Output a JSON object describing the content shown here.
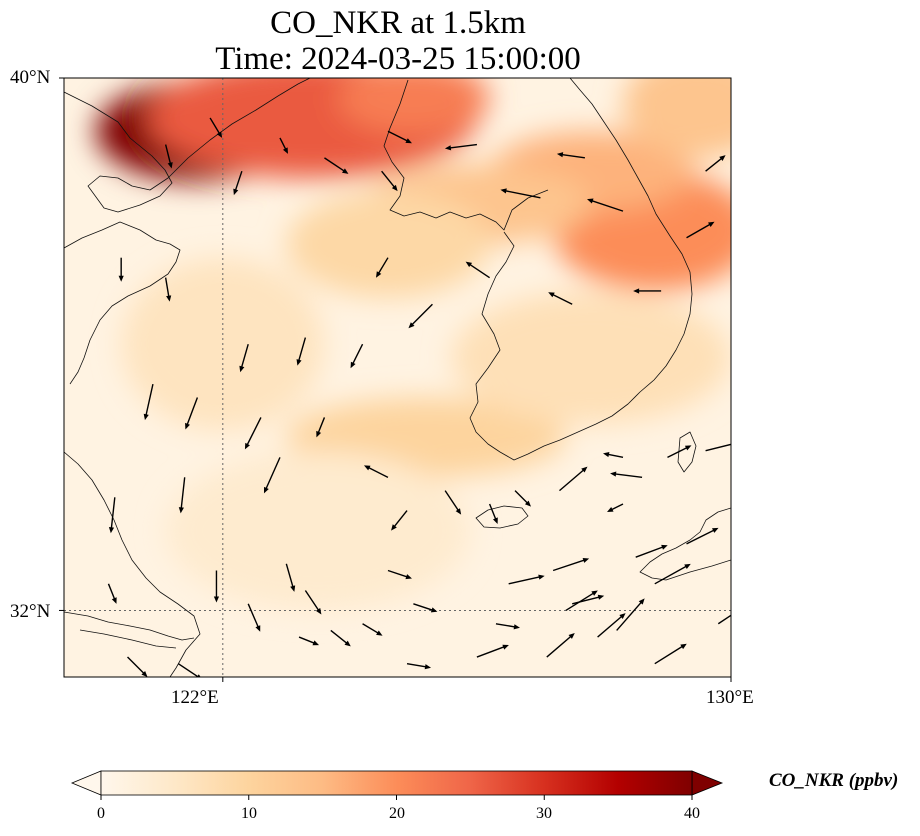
{
  "title": {
    "line1": "CO_NKR at 1.5km",
    "line2": "Time: 2024-03-25 15:00:00"
  },
  "map": {
    "extent": {
      "lon": [
        119.5,
        130.0
      ],
      "lat": [
        31.0,
        40.0
      ]
    },
    "latitude_ticks": [
      {
        "value": 40,
        "label": "40°N"
      },
      {
        "value": 32,
        "label": "32°N"
      }
    ],
    "longitude_ticks": [
      {
        "value": 122,
        "label": "122°E"
      },
      {
        "value": 130,
        "label": "130°E"
      }
    ],
    "gridlines": {
      "lon": [
        122
      ],
      "lat": [
        32
      ],
      "style": "dotted"
    },
    "field_blobs": [
      {
        "lon": 121.6,
        "lat": 39.2,
        "rlon": 1.6,
        "rlat": 0.75,
        "value": 40
      },
      {
        "lon": 122.7,
        "lat": 39.6,
        "rlon": 1.4,
        "rlat": 0.5,
        "value": 40
      },
      {
        "lon": 123.6,
        "lat": 39.75,
        "rlon": 1.2,
        "rlat": 0.4,
        "value": 38
      },
      {
        "lon": 123.4,
        "lat": 39.4,
        "rlon": 2.6,
        "rlat": 0.9,
        "value": 26
      },
      {
        "lon": 125.0,
        "lat": 39.7,
        "rlon": 1.2,
        "rlat": 0.55,
        "value": 22
      },
      {
        "lon": 128.8,
        "lat": 37.7,
        "rlon": 1.6,
        "rlat": 0.9,
        "value": 20
      },
      {
        "lon": 127.8,
        "lat": 38.6,
        "rlon": 1.6,
        "rlat": 0.6,
        "value": 16
      },
      {
        "lon": 126.0,
        "lat": 38.1,
        "rlon": 1.8,
        "rlat": 0.6,
        "value": 13
      },
      {
        "lon": 129.5,
        "lat": 39.6,
        "rlon": 1.2,
        "rlat": 0.8,
        "value": 13
      },
      {
        "lon": 124.6,
        "lat": 37.5,
        "rlon": 1.6,
        "rlat": 0.8,
        "value": 9
      },
      {
        "lon": 125.2,
        "lat": 34.6,
        "rlon": 2.2,
        "rlat": 0.6,
        "value": 10
      },
      {
        "lon": 127.8,
        "lat": 35.8,
        "rlon": 2.2,
        "rlat": 1.0,
        "value": 7
      },
      {
        "lon": 122.0,
        "lat": 36.0,
        "rlon": 1.6,
        "rlat": 1.3,
        "value": 6
      },
      {
        "lon": 123.5,
        "lat": 33.2,
        "rlon": 2.4,
        "rlat": 1.2,
        "value": 4
      }
    ],
    "wind_vectors": [
      {
        "lon": 121.1,
        "lat": 39.0,
        "u": 0.15,
        "v": -0.6
      },
      {
        "lon": 121.8,
        "lat": 39.4,
        "u": 0.3,
        "v": -0.5
      },
      {
        "lon": 122.3,
        "lat": 38.6,
        "u": -0.2,
        "v": -0.6
      },
      {
        "lon": 122.9,
        "lat": 39.1,
        "u": 0.2,
        "v": -0.4
      },
      {
        "lon": 123.6,
        "lat": 38.8,
        "u": 0.6,
        "v": -0.4
      },
      {
        "lon": 124.6,
        "lat": 39.2,
        "u": 0.6,
        "v": -0.3
      },
      {
        "lon": 124.5,
        "lat": 38.6,
        "u": 0.4,
        "v": -0.5
      },
      {
        "lon": 126.0,
        "lat": 39.0,
        "u": -0.8,
        "v": -0.1
      },
      {
        "lon": 127.7,
        "lat": 38.8,
        "u": -0.7,
        "v": 0.1
      },
      {
        "lon": 127.0,
        "lat": 38.2,
        "u": -1.0,
        "v": 0.2
      },
      {
        "lon": 128.3,
        "lat": 38.0,
        "u": -0.9,
        "v": 0.3
      },
      {
        "lon": 129.6,
        "lat": 38.6,
        "u": 0.5,
        "v": 0.4
      },
      {
        "lon": 129.3,
        "lat": 37.6,
        "u": 0.7,
        "v": 0.4
      },
      {
        "lon": 128.9,
        "lat": 36.8,
        "u": -0.7,
        "v": 0.0
      },
      {
        "lon": 127.5,
        "lat": 36.6,
        "u": -0.6,
        "v": 0.3
      },
      {
        "lon": 126.2,
        "lat": 37.0,
        "u": -0.6,
        "v": 0.4
      },
      {
        "lon": 120.4,
        "lat": 37.3,
        "u": 0.0,
        "v": -0.6
      },
      {
        "lon": 121.1,
        "lat": 37.0,
        "u": 0.1,
        "v": -0.6
      },
      {
        "lon": 122.4,
        "lat": 36.0,
        "u": -0.2,
        "v": -0.7
      },
      {
        "lon": 123.3,
        "lat": 36.1,
        "u": -0.2,
        "v": -0.7
      },
      {
        "lon": 124.2,
        "lat": 36.0,
        "u": -0.3,
        "v": -0.6
      },
      {
        "lon": 125.3,
        "lat": 36.6,
        "u": -0.6,
        "v": -0.6
      },
      {
        "lon": 124.6,
        "lat": 37.3,
        "u": -0.3,
        "v": -0.5
      },
      {
        "lon": 120.9,
        "lat": 35.4,
        "u": -0.2,
        "v": -0.9
      },
      {
        "lon": 121.6,
        "lat": 35.2,
        "u": -0.3,
        "v": -0.8
      },
      {
        "lon": 122.6,
        "lat": 34.9,
        "u": -0.4,
        "v": -0.8
      },
      {
        "lon": 123.6,
        "lat": 34.9,
        "u": -0.2,
        "v": -0.5
      },
      {
        "lon": 121.4,
        "lat": 34.0,
        "u": -0.1,
        "v": -0.9
      },
      {
        "lon": 122.9,
        "lat": 34.3,
        "u": -0.4,
        "v": -0.9
      },
      {
        "lon": 120.3,
        "lat": 33.7,
        "u": -0.1,
        "v": -0.9
      },
      {
        "lon": 124.6,
        "lat": 34.0,
        "u": -0.6,
        "v": 0.3
      },
      {
        "lon": 124.9,
        "lat": 33.5,
        "u": -0.4,
        "v": -0.5
      },
      {
        "lon": 125.5,
        "lat": 33.8,
        "u": 0.4,
        "v": -0.6
      },
      {
        "lon": 126.2,
        "lat": 33.6,
        "u": 0.2,
        "v": -0.5
      },
      {
        "lon": 126.6,
        "lat": 33.8,
        "u": 0.4,
        "v": -0.4
      },
      {
        "lon": 127.3,
        "lat": 33.8,
        "u": 0.7,
        "v": 0.6
      },
      {
        "lon": 128.3,
        "lat": 33.6,
        "u": -0.4,
        "v": -0.2
      },
      {
        "lon": 128.3,
        "lat": 34.3,
        "u": -0.5,
        "v": 0.1
      },
      {
        "lon": 128.6,
        "lat": 34.0,
        "u": -0.8,
        "v": 0.1
      },
      {
        "lon": 129.0,
        "lat": 34.3,
        "u": 0.6,
        "v": 0.3
      },
      {
        "lon": 129.6,
        "lat": 34.4,
        "u": 0.8,
        "v": 0.2
      },
      {
        "lon": 121.9,
        "lat": 32.6,
        "u": 0.0,
        "v": -0.8
      },
      {
        "lon": 123.0,
        "lat": 32.7,
        "u": 0.2,
        "v": -0.7
      },
      {
        "lon": 122.4,
        "lat": 32.1,
        "u": 0.3,
        "v": -0.7
      },
      {
        "lon": 123.3,
        "lat": 32.3,
        "u": 0.4,
        "v": -0.6
      },
      {
        "lon": 124.6,
        "lat": 32.6,
        "u": 0.6,
        "v": -0.2
      },
      {
        "lon": 124.2,
        "lat": 31.8,
        "u": 0.5,
        "v": -0.3
      },
      {
        "lon": 123.7,
        "lat": 31.7,
        "u": 0.5,
        "v": -0.4
      },
      {
        "lon": 125.0,
        "lat": 32.1,
        "u": 0.6,
        "v": -0.2
      },
      {
        "lon": 126.3,
        "lat": 31.8,
        "u": 0.6,
        "v": -0.1
      },
      {
        "lon": 126.5,
        "lat": 32.4,
        "u": 0.9,
        "v": 0.2
      },
      {
        "lon": 127.5,
        "lat": 32.1,
        "u": 0.8,
        "v": 0.2
      },
      {
        "lon": 127.2,
        "lat": 32.6,
        "u": 0.9,
        "v": 0.3
      },
      {
        "lon": 128.5,
        "lat": 32.8,
        "u": 0.8,
        "v": 0.3
      },
      {
        "lon": 129.3,
        "lat": 33.0,
        "u": 0.8,
        "v": 0.4
      },
      {
        "lon": 128.8,
        "lat": 32.4,
        "u": 0.9,
        "v": 0.5
      },
      {
        "lon": 127.4,
        "lat": 32.0,
        "u": 0.8,
        "v": 0.5
      },
      {
        "lon": 126.0,
        "lat": 31.3,
        "u": 0.8,
        "v": 0.3
      },
      {
        "lon": 127.1,
        "lat": 31.3,
        "u": 0.7,
        "v": 0.6
      },
      {
        "lon": 128.2,
        "lat": 31.7,
        "u": 0.7,
        "v": 0.8
      },
      {
        "lon": 128.8,
        "lat": 31.2,
        "u": 0.8,
        "v": 0.5
      },
      {
        "lon": 129.8,
        "lat": 31.8,
        "u": 0.9,
        "v": 0.6
      },
      {
        "lon": 127.9,
        "lat": 31.6,
        "u": 0.7,
        "v": 0.6
      },
      {
        "lon": 120.2,
        "lat": 32.4,
        "u": 0.2,
        "v": -0.5
      },
      {
        "lon": 120.5,
        "lat": 31.3,
        "u": 0.5,
        "v": -0.5
      },
      {
        "lon": 121.3,
        "lat": 31.2,
        "u": 0.6,
        "v": -0.4
      },
      {
        "lon": 122.0,
        "lat": 30.9,
        "u": 0.7,
        "v": -0.4
      },
      {
        "lon": 123.2,
        "lat": 31.6,
        "u": 0.5,
        "v": -0.2
      },
      {
        "lon": 124.9,
        "lat": 31.2,
        "u": 0.6,
        "v": -0.1
      }
    ]
  },
  "colorbar": {
    "colormap": "OrRd",
    "vmin": 0,
    "vmax": 40,
    "extend": "both",
    "colors": [
      "#fff7ec",
      "#fee8c8",
      "#fdd49e",
      "#fdbb84",
      "#fc8d59",
      "#ef6548",
      "#d7301f",
      "#b30000",
      "#7f0000"
    ],
    "ticks": [
      0,
      10,
      20,
      30,
      40
    ],
    "tick_labels": [
      "0",
      "10",
      "20",
      "30",
      "40"
    ],
    "label": "CO_NKR (ppbv)"
  }
}
